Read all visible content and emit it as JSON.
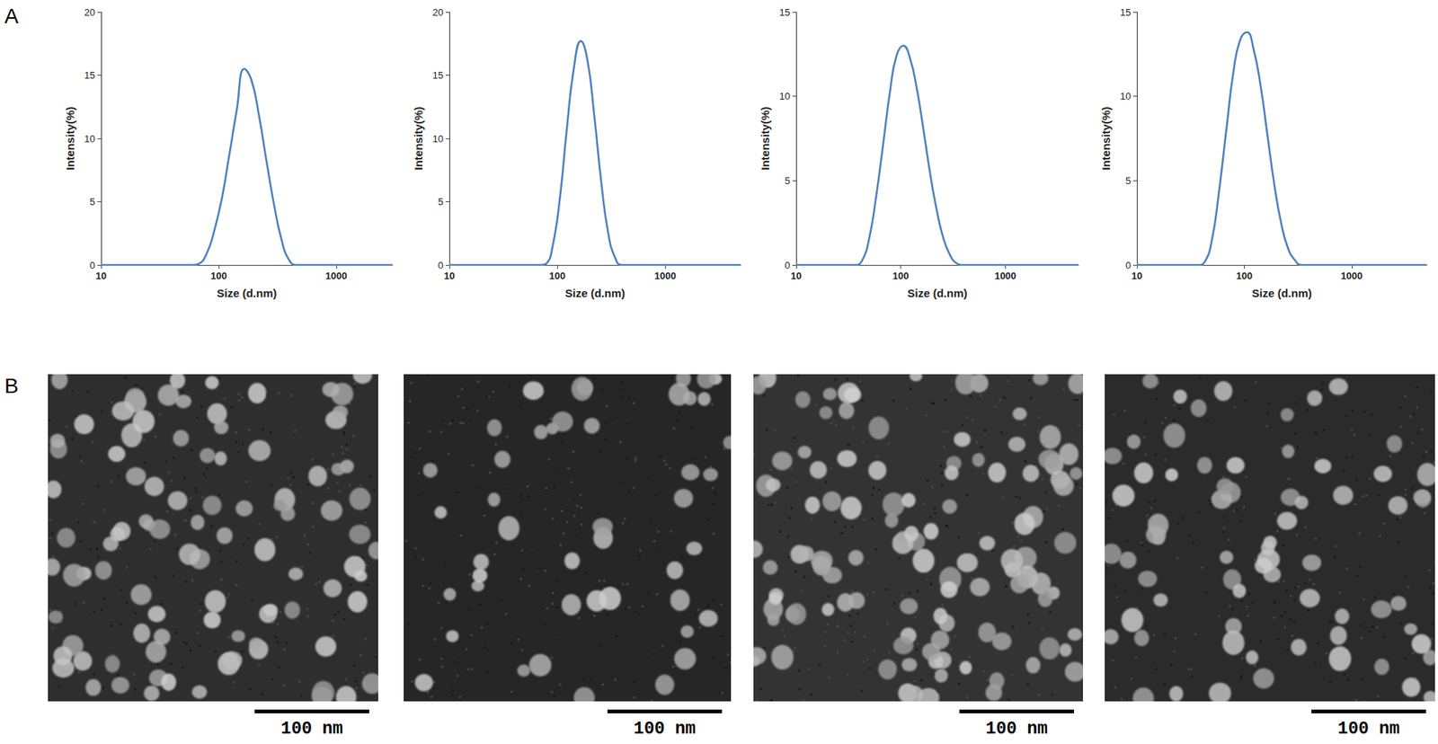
{
  "panel_labels": [
    "A",
    "B"
  ],
  "chart_data": [
    {
      "type": "line",
      "x_label": "Size (d.nm)",
      "y_label": "Intensity(%)",
      "log": "x",
      "grid": false,
      "color": "#4f81bd",
      "line_style": "solid",
      "marker": "none",
      "x": [
        10,
        60,
        68,
        79,
        91,
        106,
        122,
        142,
        165,
        190,
        220,
        255,
        295,
        342,
        396,
        459,
        3000
      ],
      "values": [
        0,
        0,
        0.1,
        0.9,
        2.6,
        5.2,
        8.5,
        12.2,
        15.5,
        14.6,
        11.8,
        8.2,
        4.8,
        2.0,
        0.4,
        0,
        0
      ],
      "xlim": [
        10,
        3000
      ],
      "xticks": [
        10,
        100,
        1000
      ],
      "ylim": [
        0,
        20
      ],
      "yticks": [
        0,
        5,
        10,
        15,
        20
      ]
    },
    {
      "type": "line",
      "x_label": "Size (d.nm)",
      "y_label": "Intensity(%)",
      "log": "x",
      "grid": false,
      "color": "#4f81bd",
      "line_style": "solid",
      "marker": "none",
      "x": [
        10,
        70,
        79,
        91,
        106,
        122,
        142,
        165,
        190,
        220,
        255,
        295,
        342,
        396,
        5000
      ],
      "values": [
        0,
        0,
        0.1,
        1.6,
        5.4,
        10.6,
        15.5,
        17.7,
        16.2,
        11.8,
        6.6,
        2.6,
        0.6,
        0,
        0
      ],
      "xlim": [
        10,
        5000
      ],
      "xticks": [
        10,
        100,
        1000
      ],
      "ylim": [
        0,
        20
      ],
      "yticks": [
        0,
        5,
        10,
        15,
        20
      ]
    },
    {
      "type": "line",
      "x_label": "Size (d.nm)",
      "y_label": "Intensity(%)",
      "log": "x",
      "grid": false,
      "color": "#4f81bd",
      "line_style": "solid",
      "marker": "none",
      "x": [
        10,
        37,
        43,
        50,
        58,
        68,
        79,
        91,
        106,
        122,
        142,
        165,
        190,
        220,
        255,
        295,
        342,
        396,
        5000
      ],
      "values": [
        0,
        0,
        0.3,
        1.6,
        4.0,
        7.2,
        10.3,
        12.4,
        13.0,
        12.3,
        10.5,
        8.0,
        5.5,
        3.3,
        1.6,
        0.6,
        0.1,
        0,
        0
      ],
      "xlim": [
        10,
        5000
      ],
      "xticks": [
        10,
        100,
        1000
      ],
      "ylim": [
        0,
        15
      ],
      "yticks": [
        0,
        5,
        10,
        15
      ]
    },
    {
      "type": "line",
      "x_label": "Size (d.nm)",
      "y_label": "Intensity(%)",
      "log": "x",
      "grid": false,
      "color": "#4f81bd",
      "line_style": "solid",
      "marker": "none",
      "x": [
        10,
        37,
        43,
        50,
        58,
        68,
        79,
        91,
        106,
        122,
        142,
        165,
        190,
        220,
        255,
        295,
        342,
        5000
      ],
      "values": [
        0,
        0,
        0.2,
        1.5,
        4.3,
        8.0,
        11.4,
        13.3,
        13.8,
        12.8,
        10.6,
        7.6,
        4.8,
        2.5,
        1.0,
        0.3,
        0,
        0
      ],
      "xlim": [
        10,
        5000
      ],
      "xticks": [
        10,
        100,
        1000
      ],
      "ylim": [
        0,
        15
      ],
      "yticks": [
        0,
        5,
        10,
        15
      ]
    }
  ],
  "micrographs": [
    {
      "scale_bar_label": "100 nm"
    },
    {
      "scale_bar_label": "100 nm"
    },
    {
      "scale_bar_label": "100 nm"
    },
    {
      "scale_bar_label": "100 nm"
    }
  ]
}
